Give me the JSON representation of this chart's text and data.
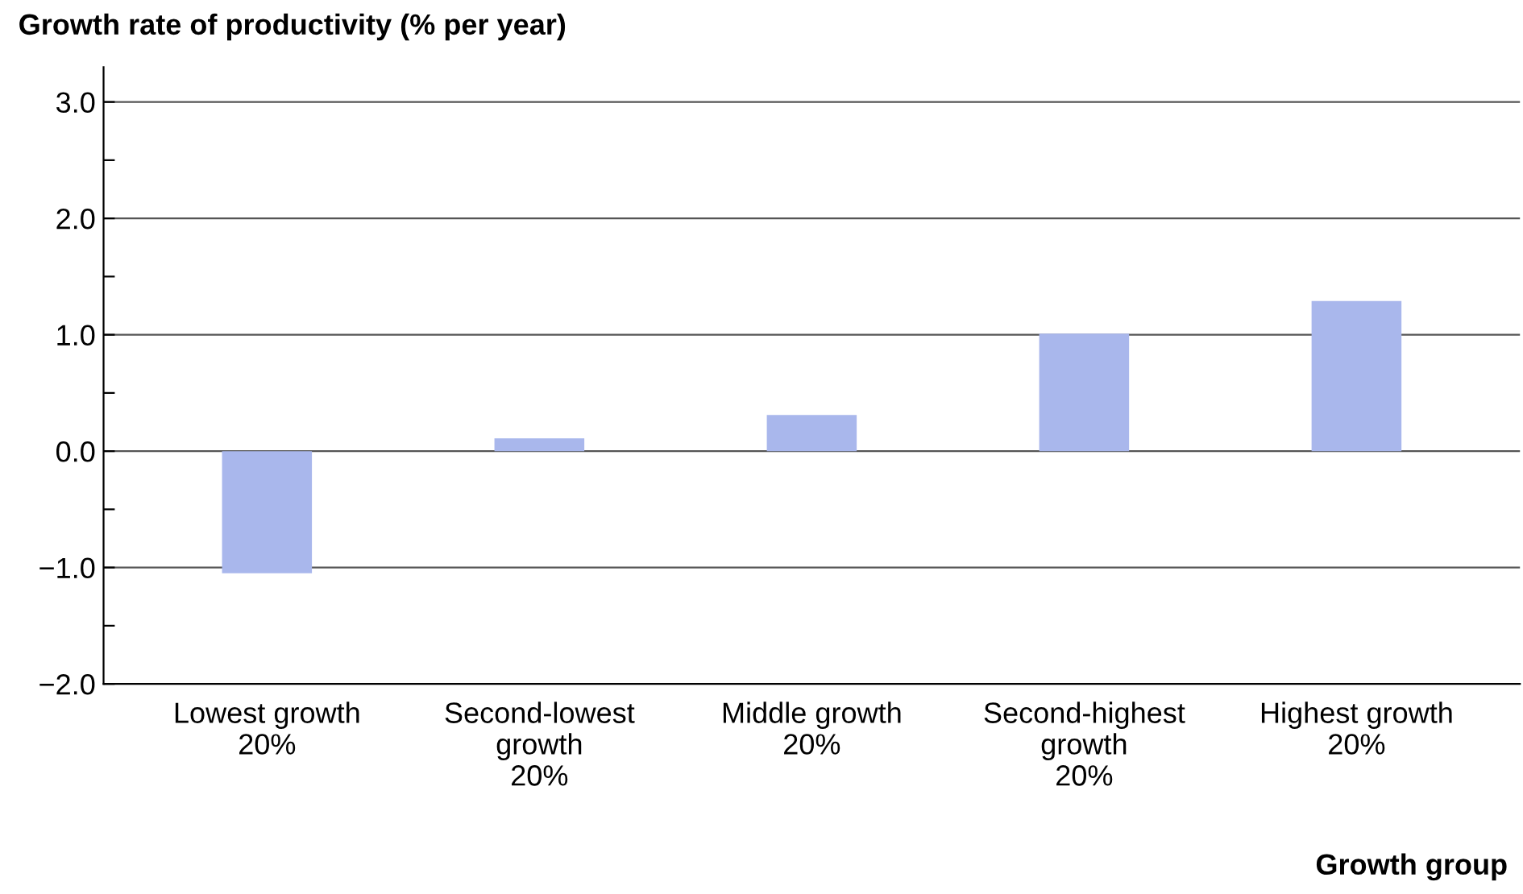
{
  "chart_data": {
    "type": "bar",
    "ylabel": "Growth rate of productivity (% per year)",
    "xlabel": "Growth group",
    "categories": [
      "Lowest growth\n20%",
      "Second-lowest\ngrowth\n20%",
      "Middle growth\n20%",
      "Second-highest\ngrowth\n20%",
      "Highest growth\n20%"
    ],
    "values": [
      -1.05,
      0.11,
      0.31,
      1.01,
      1.29
    ],
    "color": "#a9b7ec",
    "ylim": [
      -2,
      3.3
    ],
    "yticks": [
      {
        "value": -2,
        "label": "−2.0"
      },
      {
        "value": -1.5,
        "label": null
      },
      {
        "value": -1,
        "label": "−1.0"
      },
      {
        "value": -0.5,
        "label": null
      },
      {
        "value": 0,
        "label": "0.0"
      },
      {
        "value": 0.5,
        "label": null
      },
      {
        "value": 1,
        "label": "1.0"
      },
      {
        "value": 1.5,
        "label": null
      },
      {
        "value": 2,
        "label": "2.0"
      },
      {
        "value": 2.5,
        "label": null
      },
      {
        "value": 3,
        "label": "3.0"
      }
    ],
    "grid": "y"
  }
}
